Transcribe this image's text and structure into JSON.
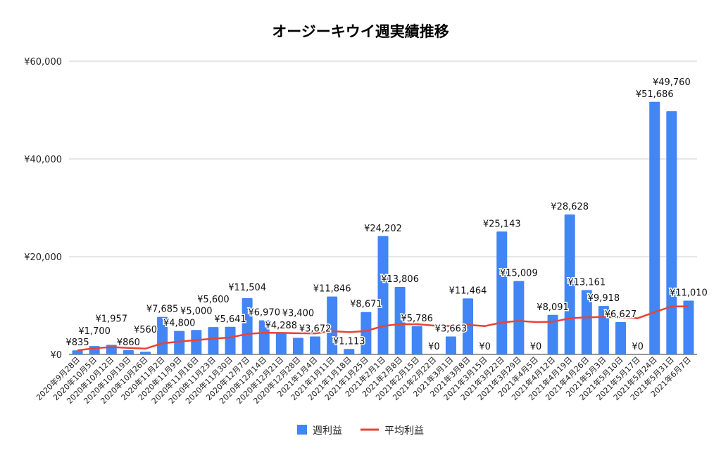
{
  "chart_data": {
    "type": "bar",
    "title": "オージーキウイ週実績推移",
    "xlabel": "",
    "ylabel": "",
    "ylim": [
      0,
      60000
    ],
    "yticks": [
      "¥0",
      "¥20,000",
      "¥40,000",
      "¥60,000"
    ],
    "ytick_values": [
      0,
      20000,
      40000,
      60000
    ],
    "grid": true,
    "legend": "bottom",
    "categories": [
      "2020年9月28日",
      "2020年10月5日",
      "2020年10月12日",
      "2020年10月19日",
      "2020年10月26日",
      "2020年11月2日",
      "2020年11月9日",
      "2020年11月16日",
      "2020年11月23日",
      "2020年11月30日",
      "2020年12月7日",
      "2020年12月14日",
      "2020年12月21日",
      "2020年12月28日",
      "2021年1月4日",
      "2021年1月11日",
      "2021年1月18日",
      "2021年1月25日",
      "2021年2月1日",
      "2021年2月8日",
      "2021年2月15日",
      "2021年2月22日",
      "2021年3月1日",
      "2021年3月8日",
      "2021年3月15日",
      "2021年3月22日",
      "2021年3月29日",
      "2021年4月5日",
      "2021年4月12日",
      "2021年4月19日",
      "2021年4月26日",
      "2021年5月3日",
      "2021年5月10日",
      "2021年5月17日",
      "2021年5月24日",
      "2021年5月31日",
      "2021年6月7日"
    ],
    "series": [
      {
        "name": "週利益",
        "type": "bar",
        "color": "#4285f4",
        "values": [
          835,
          1700,
          1957,
          860,
          560,
          7685,
          4800,
          5000,
          5600,
          5641,
          11504,
          6970,
          4288,
          3400,
          3672,
          11846,
          1113,
          8671,
          24202,
          13806,
          5786,
          0,
          3663,
          11464,
          0,
          25143,
          15009,
          0,
          8091,
          28628,
          13161,
          9918,
          6627,
          0,
          51686,
          49760,
          11010
        ],
        "labels": [
          "¥835",
          "¥1,700",
          "¥1,957",
          "¥860",
          "¥560",
          "¥7,685",
          "¥4,800",
          "¥5,000",
          "¥5,600",
          "¥5,641",
          "¥11,504",
          "¥6,970",
          "¥4,288",
          "¥3,400",
          "¥3,672",
          "¥11,846",
          "¥1,113",
          "¥8,671",
          "¥24,202",
          "¥13,806",
          "¥5,786",
          "¥0",
          "¥3,663",
          "¥11,464",
          "¥0",
          "¥25,143",
          "¥15,009",
          "¥0",
          "¥8,091",
          "¥28,628",
          "¥13,161",
          "¥9,918",
          "¥6,627",
          "¥0",
          "¥51,686",
          "¥49,760",
          "¥11,010"
        ]
      },
      {
        "name": "平均利益",
        "type": "line",
        "color": "#ea4335",
        "values": [
          835,
          1268,
          1497,
          1338,
          1182,
          2266,
          2628,
          2925,
          3222,
          3464,
          4195,
          4426,
          4415,
          4343,
          4298,
          4770,
          4555,
          4783,
          5805,
          6206,
          6185,
          5904,
          5807,
          6043,
          5801,
          6545,
          6858,
          6613,
          6664,
          7396,
          7583,
          7655,
          7624,
          7400,
          8665,
          9807,
          9839
        ]
      }
    ]
  }
}
